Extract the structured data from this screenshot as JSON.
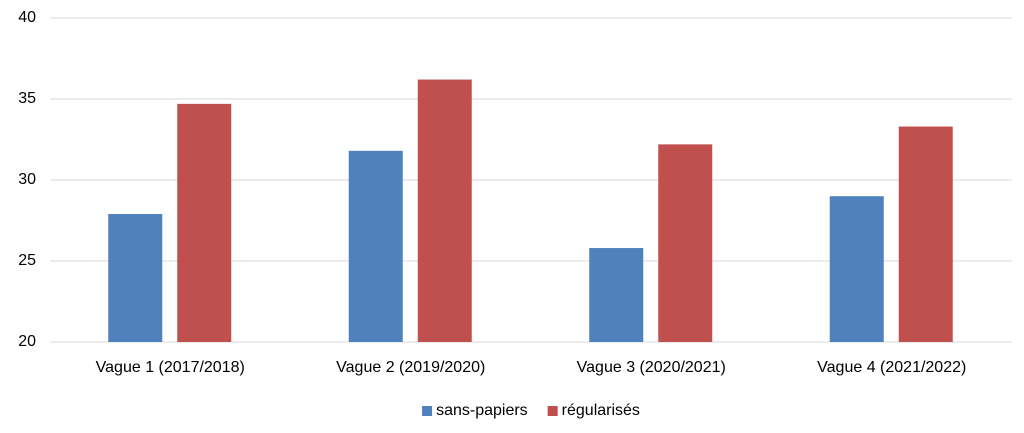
{
  "chart_data": {
    "type": "bar",
    "categories": [
      "Vague 1 (2017/2018)",
      "Vague 2 (2019/2020)",
      "Vague 3 (2020/2021)",
      "Vague 4 (2021/2022)"
    ],
    "series": [
      {
        "name": "sans-papiers",
        "color": "#4f81bd",
        "values": [
          27.9,
          31.8,
          25.8,
          29.0
        ]
      },
      {
        "name": "régularisés",
        "color": "#c0504d",
        "values": [
          34.7,
          36.2,
          32.2,
          33.3
        ]
      }
    ],
    "ylim": [
      20,
      40
    ],
    "yticks": [
      20,
      25,
      30,
      35,
      40
    ],
    "grid": true,
    "legend": "bottom"
  }
}
